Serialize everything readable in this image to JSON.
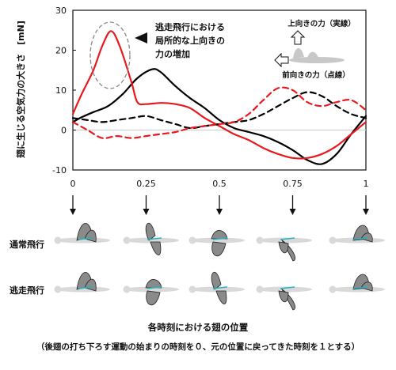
{
  "chart_data": {
    "type": "line",
    "ylabel": "翅に生じる空気力の大きさ　[mN]",
    "xlabel": "各時刻における翅の位置",
    "xlabel_note": "（後翅の打ち下ろす運動の始まりの時刻を０、元の位置に戻ってきた時刻を１とする）",
    "xlim": [
      0,
      1
    ],
    "ylim": [
      -10,
      30
    ],
    "x_ticks": [
      "0",
      "0.25",
      "0.5",
      "0.75",
      "1"
    ],
    "y_ticks": [
      "-10",
      "0",
      "10",
      "20",
      "30"
    ],
    "zero_line": true,
    "legend_up": "上向きの力（実線）",
    "legend_forward": "前向きの力（点線）",
    "annotation": "逃走飛行における\n局所的な上向きの\n力の増加",
    "row_labels": [
      "通常飛行",
      "逃走飛行"
    ],
    "series": [
      {
        "color": "#000000",
        "dash": false,
        "x": [
          0,
          0.03,
          0.07,
          0.12,
          0.17,
          0.22,
          0.27,
          0.3,
          0.35,
          0.4,
          0.45,
          0.5,
          0.55,
          0.6,
          0.65,
          0.7,
          0.75,
          0.8,
          0.85,
          0.9,
          0.95,
          1
        ],
        "y": [
          2,
          3.2,
          4.5,
          6,
          9,
          13,
          15.2,
          14.5,
          11,
          8,
          5.5,
          2.5,
          0.5,
          -0.5,
          -1.5,
          -3,
          -5,
          -7.5,
          -8.5,
          -6,
          -1,
          3.5
        ]
      },
      {
        "color": "#e8191e",
        "dash": false,
        "x": [
          0,
          0.03,
          0.07,
          0.1,
          0.13,
          0.16,
          0.2,
          0.22,
          0.25,
          0.3,
          0.35,
          0.4,
          0.45,
          0.5,
          0.55,
          0.6,
          0.65,
          0.7,
          0.75,
          0.8,
          0.85,
          0.9,
          0.95,
          1
        ],
        "y": [
          4,
          9,
          15,
          21,
          24.8,
          21,
          12,
          7,
          6.5,
          6.8,
          6.5,
          5.5,
          3,
          1,
          -1,
          -2.5,
          -4.5,
          -6,
          -7,
          -7,
          -6,
          -4,
          -1,
          2
        ]
      },
      {
        "color": "#000000",
        "dash": true,
        "x": [
          0,
          0.05,
          0.1,
          0.15,
          0.2,
          0.25,
          0.3,
          0.35,
          0.4,
          0.45,
          0.5,
          0.55,
          0.6,
          0.65,
          0.7,
          0.75,
          0.8,
          0.85,
          0.9,
          0.95,
          1
        ],
        "y": [
          3,
          2.5,
          2,
          2.5,
          3,
          3.5,
          2.5,
          1.5,
          0.5,
          1,
          1.5,
          2,
          2.5,
          4,
          6,
          8,
          9.5,
          8.5,
          6,
          4,
          3
        ]
      },
      {
        "color": "#e8191e",
        "dash": true,
        "x": [
          0,
          0.05,
          0.1,
          0.15,
          0.2,
          0.25,
          0.3,
          0.35,
          0.4,
          0.45,
          0.5,
          0.55,
          0.6,
          0.65,
          0.7,
          0.75,
          0.8,
          0.85,
          0.9,
          0.95,
          1
        ],
        "y": [
          2,
          0,
          -2,
          -1.5,
          -2,
          -1.5,
          -1,
          -0.5,
          0.5,
          1,
          1.5,
          2,
          4,
          7.5,
          10.5,
          10,
          7,
          6,
          7,
          7.5,
          5
        ]
      }
    ]
  }
}
